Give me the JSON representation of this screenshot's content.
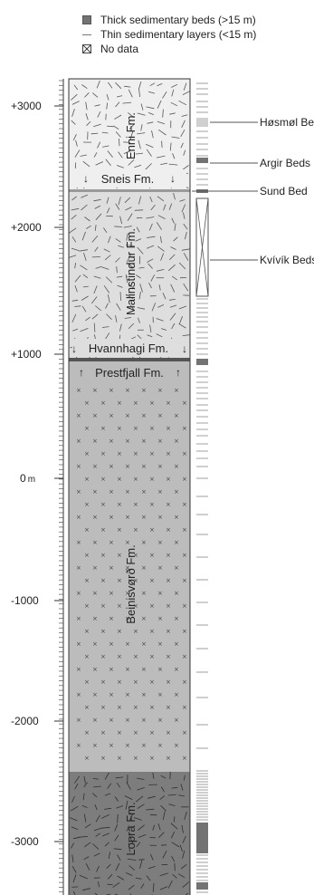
{
  "legend": {
    "thick": "Thick sedimentary beds (>15 m)",
    "thin": "Thin sedimentary layers (<15 m)",
    "nodata": "No data"
  },
  "axis": {
    "unit": "m",
    "ticks": [
      "+3000",
      "+2000",
      "+1000",
      "0",
      "-1000",
      "-2000",
      "-3000"
    ]
  },
  "formations": {
    "enni": "Enni Fm.",
    "sneis": "Sneis Fm.",
    "malinstindur": "Malinstindur Fm.",
    "hvannhagi": "Hvannhagi Fm.",
    "prestfjall": "Prestfjall Fm.",
    "beinisvord": "Beinisvørð Fm.",
    "lopra": "Lopra Fm."
  },
  "beds": {
    "hosmol": "Høsmøl Beds",
    "argir": "Argir Beds",
    "sund": "Sund Bed",
    "kvivik": "Kvívík Beds"
  },
  "colors": {
    "enni_fill": "#efefef",
    "malinstindur_fill": "#dedede",
    "beinisvord_fill": "#bcbcbc",
    "lopra_fill": "#7d7d7d",
    "boundary": "#555555",
    "thick_bed": "#737373"
  }
}
